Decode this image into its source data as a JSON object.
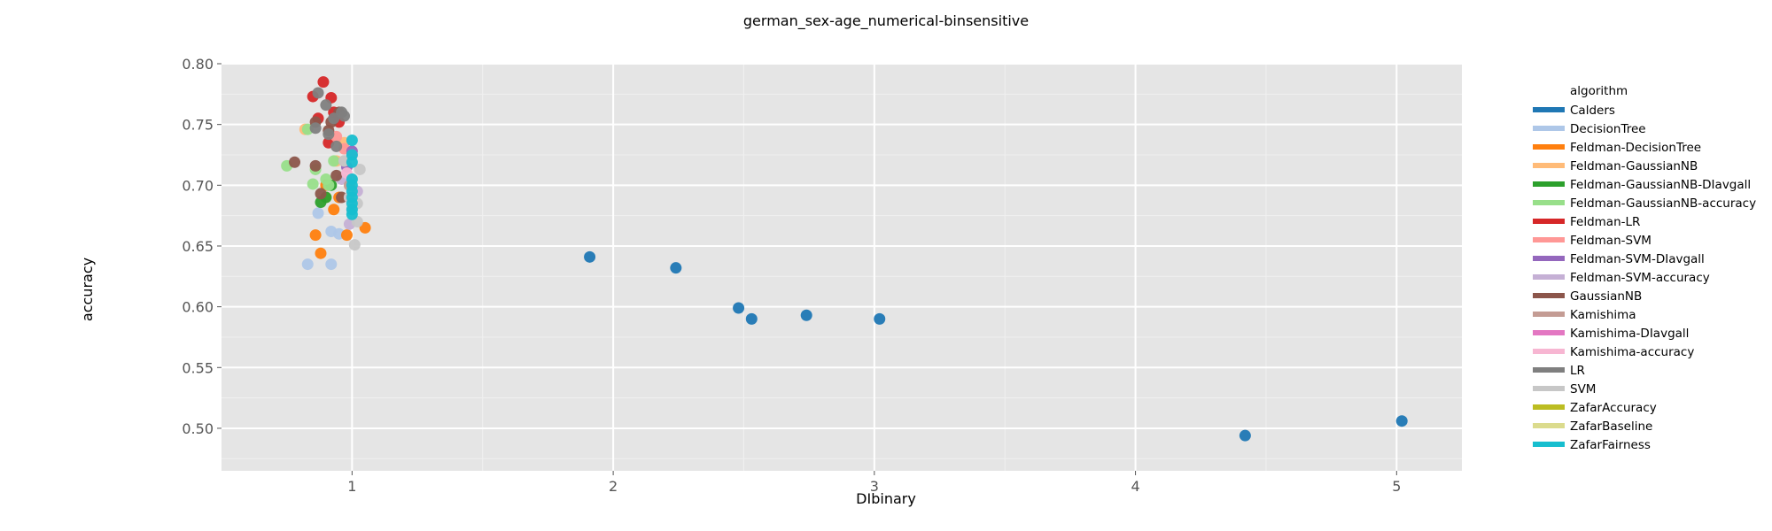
{
  "chart_data": {
    "type": "scatter",
    "title": "german_sex-age_numerical-binsensitive",
    "xlabel": "DIbinary",
    "ylabel": "accuracy",
    "xlim": [
      0.5,
      5.25
    ],
    "ylim": [
      0.465,
      0.8
    ],
    "xticks": [
      1,
      2,
      3,
      4,
      5
    ],
    "yticks": [
      0.5,
      0.55,
      0.6,
      0.65,
      0.7,
      0.75,
      0.8
    ],
    "ytick_labels": [
      "0.50",
      "0.55",
      "0.60",
      "0.65",
      "0.70",
      "0.75",
      "0.80"
    ],
    "grid": true,
    "legend_position": "right",
    "legend_title": "algorithm",
    "series": [
      {
        "name": "Calders",
        "color": "#1f77b4",
        "points": [
          [
            1.91,
            0.641
          ],
          [
            2.24,
            0.632
          ],
          [
            2.48,
            0.599
          ],
          [
            2.53,
            0.59
          ],
          [
            2.74,
            0.593
          ],
          [
            3.02,
            0.59
          ],
          [
            4.42,
            0.494
          ],
          [
            5.02,
            0.506
          ]
        ]
      },
      {
        "name": "DecisionTree",
        "color": "#aec7e8",
        "points": [
          [
            0.83,
            0.635
          ],
          [
            0.92,
            0.635
          ],
          [
            0.87,
            0.677
          ],
          [
            0.92,
            0.662
          ],
          [
            0.95,
            0.66
          ]
        ]
      },
      {
        "name": "Feldman-DecisionTree",
        "color": "#ff7f0e",
        "points": [
          [
            0.86,
            0.659
          ],
          [
            0.88,
            0.644
          ],
          [
            0.98,
            0.659
          ],
          [
            1.05,
            0.665
          ],
          [
            0.93,
            0.68
          ],
          [
            0.95,
            0.69
          ],
          [
            0.9,
            0.7
          ]
        ]
      },
      {
        "name": "Feldman-GaussianNB",
        "color": "#ffbb78",
        "points": [
          [
            0.82,
            0.746
          ],
          [
            0.9,
            0.69
          ],
          [
            0.94,
            0.72
          ],
          [
            0.97,
            0.735
          ]
        ]
      },
      {
        "name": "Feldman-GaussianNB-DIavgall",
        "color": "#2ca02c",
        "points": [
          [
            0.88,
            0.686
          ],
          [
            0.9,
            0.69
          ],
          [
            0.92,
            0.7
          ]
        ]
      },
      {
        "name": "Feldman-GaussianNB-accuracy",
        "color": "#98df8a",
        "points": [
          [
            0.75,
            0.716
          ],
          [
            0.83,
            0.746
          ],
          [
            0.85,
            0.701
          ],
          [
            0.86,
            0.713
          ],
          [
            0.9,
            0.705
          ],
          [
            0.91,
            0.7
          ],
          [
            0.93,
            0.72
          ]
        ]
      },
      {
        "name": "Feldman-LR",
        "color": "#d62728",
        "points": [
          [
            0.89,
            0.785
          ],
          [
            0.85,
            0.773
          ],
          [
            0.92,
            0.772
          ],
          [
            0.87,
            0.755
          ],
          [
            0.91,
            0.735
          ],
          [
            0.95,
            0.752
          ],
          [
            0.93,
            0.76
          ]
        ]
      },
      {
        "name": "Feldman-SVM",
        "color": "#ff9896",
        "points": [
          [
            0.94,
            0.74
          ],
          [
            0.97,
            0.73
          ]
        ]
      },
      {
        "name": "Feldman-SVM-DIavgall",
        "color": "#9467bd",
        "points": [
          [
            1.0,
            0.728
          ],
          [
            0.98,
            0.715
          ]
        ]
      },
      {
        "name": "Feldman-SVM-accuracy",
        "color": "#c5b0d5",
        "points": [
          [
            0.99,
            0.668
          ],
          [
            1.0,
            0.68
          ],
          [
            1.02,
            0.695
          ],
          [
            0.96,
            0.705
          ]
        ]
      },
      {
        "name": "GaussianNB",
        "color": "#8c564b",
        "points": [
          [
            0.78,
            0.719
          ],
          [
            0.86,
            0.752
          ],
          [
            0.86,
            0.716
          ],
          [
            0.88,
            0.693
          ],
          [
            0.91,
            0.745
          ],
          [
            0.94,
            0.708
          ],
          [
            0.96,
            0.69
          ],
          [
            0.92,
            0.752
          ],
          [
            0.95,
            0.76
          ]
        ]
      },
      {
        "name": "Kamishima",
        "color": "#c49c94",
        "points": [
          [
            0.97,
            0.72
          ],
          [
            0.99,
            0.7
          ]
        ]
      },
      {
        "name": "Kamishima-DIavgall",
        "color": "#e377c2",
        "points": [
          [
            1.0,
            0.725
          ]
        ]
      },
      {
        "name": "Kamishima-accuracy",
        "color": "#f7b6d2",
        "points": [
          [
            0.98,
            0.71
          ],
          [
            0.99,
            0.69
          ]
        ]
      },
      {
        "name": "LR",
        "color": "#7f7f7f",
        "points": [
          [
            0.87,
            0.776
          ],
          [
            0.9,
            0.766
          ],
          [
            0.93,
            0.755
          ],
          [
            0.96,
            0.76
          ],
          [
            0.91,
            0.742
          ],
          [
            0.94,
            0.732
          ],
          [
            0.86,
            0.747
          ],
          [
            0.97,
            0.757
          ]
        ]
      },
      {
        "name": "SVM",
        "color": "#c7c7c7",
        "points": [
          [
            1.01,
            0.651
          ],
          [
            1.02,
            0.685
          ],
          [
            1.03,
            0.713
          ],
          [
            0.99,
            0.69
          ],
          [
            1.0,
            0.705
          ],
          [
            0.97,
            0.72
          ],
          [
            1.02,
            0.67
          ]
        ]
      },
      {
        "name": "ZafarAccuracy",
        "color": "#bcbd22",
        "points": []
      },
      {
        "name": "ZafarBaseline",
        "color": "#dbdb8d",
        "points": []
      },
      {
        "name": "ZafarFairness",
        "color": "#17becf",
        "points": [
          [
            1.0,
            0.737
          ],
          [
            1.0,
            0.725
          ],
          [
            1.0,
            0.719
          ],
          [
            1.0,
            0.705
          ],
          [
            1.0,
            0.7
          ],
          [
            1.0,
            0.695
          ],
          [
            1.0,
            0.69
          ],
          [
            1.0,
            0.685
          ],
          [
            1.0,
            0.68
          ],
          [
            1.0,
            0.676
          ]
        ]
      }
    ]
  }
}
